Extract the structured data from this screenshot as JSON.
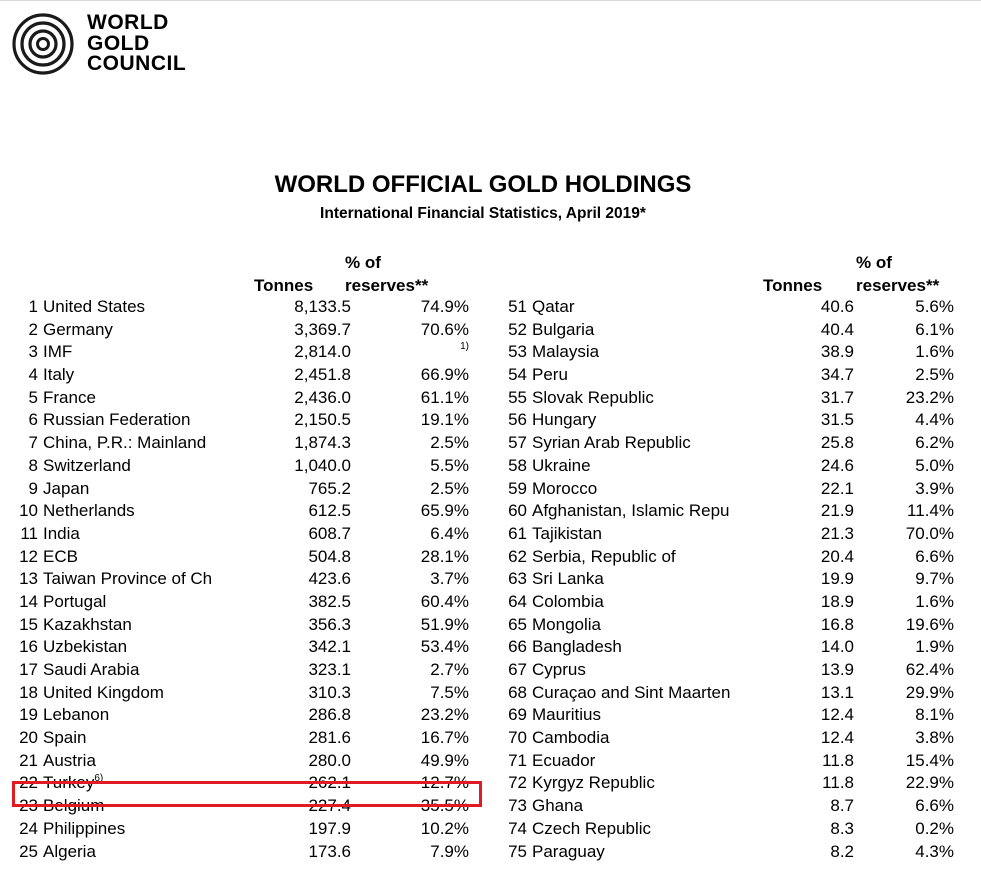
{
  "logo": {
    "lines": [
      "WORLD",
      "GOLD",
      "COUNCIL"
    ]
  },
  "title": "WORLD OFFICIAL GOLD HOLDINGS",
  "subtitle": "International Financial Statistics, April 2019*",
  "headers": {
    "tonnes": "Tonnes",
    "pct_line1": "% of",
    "pct_line2": "reserves**"
  },
  "left_rows": [
    {
      "rank": "1",
      "country": "United States",
      "tonnes": "8,133.5",
      "pct": "74.9%"
    },
    {
      "rank": "2",
      "country": "Germany",
      "tonnes": "3,369.7",
      "pct": "70.6%"
    },
    {
      "rank": "3",
      "country": "IMF",
      "tonnes": "2,814.0",
      "pct": "1)"
    },
    {
      "rank": "4",
      "country": "Italy",
      "tonnes": "2,451.8",
      "pct": "66.9%"
    },
    {
      "rank": "5",
      "country": "France",
      "tonnes": "2,436.0",
      "pct": "61.1%"
    },
    {
      "rank": "6",
      "country": "Russian Federation",
      "tonnes": "2,150.5",
      "pct": "19.1%"
    },
    {
      "rank": "7",
      "country": "China, P.R.: Mainland",
      "tonnes": "1,874.3",
      "pct": "2.5%"
    },
    {
      "rank": "8",
      "country": "Switzerland",
      "tonnes": "1,040.0",
      "pct": "5.5%"
    },
    {
      "rank": "9",
      "country": "Japan",
      "tonnes": "765.2",
      "pct": "2.5%"
    },
    {
      "rank": "10",
      "country": "Netherlands",
      "tonnes": "612.5",
      "pct": "65.9%"
    },
    {
      "rank": "11",
      "country": "India",
      "tonnes": "608.7",
      "pct": "6.4%"
    },
    {
      "rank": "12",
      "country": "ECB",
      "tonnes": "504.8",
      "pct": "28.1%"
    },
    {
      "rank": "13",
      "country": "Taiwan Province of Ch",
      "tonnes": "423.6",
      "pct": "3.7%"
    },
    {
      "rank": "14",
      "country": "Portugal",
      "tonnes": "382.5",
      "pct": "60.4%"
    },
    {
      "rank": "15",
      "country": "Kazakhstan",
      "tonnes": "356.3",
      "pct": "51.9%"
    },
    {
      "rank": "16",
      "country": "Uzbekistan",
      "tonnes": "342.1",
      "pct": "53.4%"
    },
    {
      "rank": "17",
      "country": "Saudi Arabia",
      "tonnes": "323.1",
      "pct": "2.7%"
    },
    {
      "rank": "18",
      "country": "United Kingdom",
      "tonnes": "310.3",
      "pct": "7.5%"
    },
    {
      "rank": "19",
      "country": "Lebanon",
      "tonnes": "286.8",
      "pct": "23.2%"
    },
    {
      "rank": "20",
      "country": "Spain",
      "tonnes": "281.6",
      "pct": "16.7%"
    },
    {
      "rank": "21",
      "country": "Austria",
      "tonnes": "280.0",
      "pct": "49.9%"
    },
    {
      "rank": "22",
      "country": "Turkey",
      "note": "6)",
      "tonnes": "262.1",
      "pct": "12.7%"
    },
    {
      "rank": "23",
      "country": "Belgium",
      "tonnes": "227.4",
      "pct": "35.5%"
    },
    {
      "rank": "24",
      "country": "Philippines",
      "tonnes": "197.9",
      "pct": "10.2%"
    },
    {
      "rank": "25",
      "country": "Algeria",
      "tonnes": "173.6",
      "pct": "7.9%"
    }
  ],
  "right_rows": [
    {
      "rank": "51",
      "country": "Qatar",
      "tonnes": "40.6",
      "pct": "5.6%"
    },
    {
      "rank": "52",
      "country": "Bulgaria",
      "tonnes": "40.4",
      "pct": "6.1%"
    },
    {
      "rank": "53",
      "country": "Malaysia",
      "tonnes": "38.9",
      "pct": "1.6%"
    },
    {
      "rank": "54",
      "country": "Peru",
      "tonnes": "34.7",
      "pct": "2.5%"
    },
    {
      "rank": "55",
      "country": "Slovak Republic",
      "tonnes": "31.7",
      "pct": "23.2%"
    },
    {
      "rank": "56",
      "country": "Hungary",
      "tonnes": "31.5",
      "pct": "4.4%"
    },
    {
      "rank": "57",
      "country": "Syrian Arab Republic",
      "tonnes": "25.8",
      "pct": "6.2%"
    },
    {
      "rank": "58",
      "country": "Ukraine",
      "tonnes": "24.6",
      "pct": "5.0%"
    },
    {
      "rank": "59",
      "country": "Morocco",
      "tonnes": "22.1",
      "pct": "3.9%"
    },
    {
      "rank": "60",
      "country": "Afghanistan, Islamic Repu",
      "tonnes": "21.9",
      "pct": "11.4%"
    },
    {
      "rank": "61",
      "country": "Tajikistan",
      "tonnes": "21.3",
      "pct": "70.0%"
    },
    {
      "rank": "62",
      "country": "Serbia, Republic of",
      "tonnes": "20.4",
      "pct": "6.6%"
    },
    {
      "rank": "63",
      "country": "Sri Lanka",
      "tonnes": "19.9",
      "pct": "9.7%"
    },
    {
      "rank": "64",
      "country": "Colombia",
      "tonnes": "18.9",
      "pct": "1.6%"
    },
    {
      "rank": "65",
      "country": "Mongolia",
      "tonnes": "16.8",
      "pct": "19.6%"
    },
    {
      "rank": "66",
      "country": "Bangladesh",
      "tonnes": "14.0",
      "pct": "1.9%"
    },
    {
      "rank": "67",
      "country": "Cyprus",
      "tonnes": "13.9",
      "pct": "62.4%"
    },
    {
      "rank": "68",
      "country": "Curaçao and Sint Maarten",
      "tonnes": "13.1",
      "pct": "29.9%"
    },
    {
      "rank": "69",
      "country": "Mauritius",
      "tonnes": "12.4",
      "pct": "8.1%"
    },
    {
      "rank": "70",
      "country": "Cambodia",
      "tonnes": "12.4",
      "pct": "3.8%"
    },
    {
      "rank": "71",
      "country": "Ecuador",
      "tonnes": "11.8",
      "pct": "15.4%"
    },
    {
      "rank": "72",
      "country": "Kyrgyz Republic",
      "tonnes": "11.8",
      "pct": "22.9%"
    },
    {
      "rank": "73",
      "country": "Ghana",
      "tonnes": "8.7",
      "pct": "6.6%"
    },
    {
      "rank": "74",
      "country": "Czech Republic",
      "tonnes": "8.3",
      "pct": "0.2%"
    },
    {
      "rank": "75",
      "country": "Paraguay",
      "tonnes": "8.2",
      "pct": "4.3%"
    }
  ],
  "highlight": {
    "row_rank": "22",
    "color": "#e01b24"
  }
}
